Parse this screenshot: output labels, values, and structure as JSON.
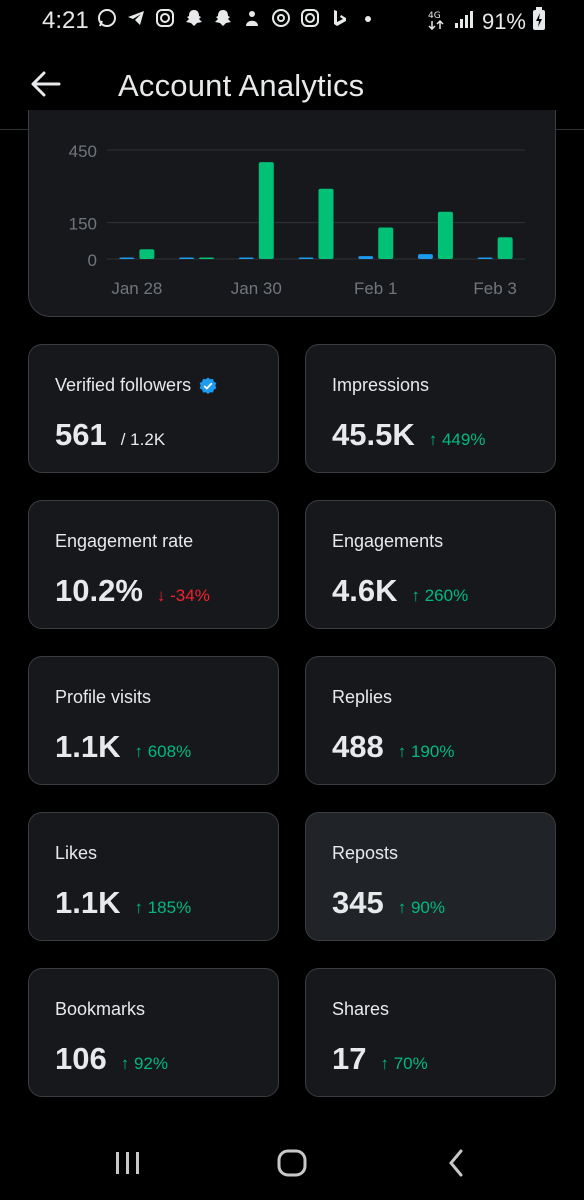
{
  "status_bar": {
    "time": "4:21",
    "left_icons": [
      "whatsapp-icon",
      "telegram-icon",
      "instagram-icon",
      "snapchat-icon",
      "snapchat-icon",
      "snapchat-ghost-icon",
      "threads-icon",
      "instagram-icon",
      "bing-icon",
      "dot-icon"
    ],
    "battery": "91%"
  },
  "header": {
    "title": "Account Analytics"
  },
  "chart_data": {
    "type": "bar",
    "categories": [
      "Jan 28",
      "Jan 29",
      "Jan 30",
      "Jan 31",
      "Feb 1",
      "Feb 2",
      "Feb 3"
    ],
    "x_tick_labels": [
      "Jan 28",
      "Jan 30",
      "Feb 1",
      "Feb 3"
    ],
    "y_tick_labels": [
      "450",
      "150",
      "0"
    ],
    "series": [
      {
        "values": [
          5,
          3,
          5,
          5,
          12,
          20,
          5
        ],
        "color": "#1d9bf0"
      },
      {
        "values": [
          40,
          3,
          400,
          290,
          130,
          195,
          90
        ],
        "color": "#00c176"
      }
    ],
    "ylim": [
      0,
      450
    ]
  },
  "metrics": [
    {
      "label": "Verified followers",
      "value": "561",
      "total": "/ 1.2K",
      "verified": true
    },
    {
      "label": "Impressions",
      "value": "45.5K",
      "change": "↑ 449%",
      "dir": "up"
    },
    {
      "label": "Engagement rate",
      "value": "10.2%",
      "change": "↓ -34%",
      "dir": "down"
    },
    {
      "label": "Engagements",
      "value": "4.6K",
      "change": "↑ 260%",
      "dir": "up"
    },
    {
      "label": "Profile visits",
      "value": "1.1K",
      "change": "↑ 608%",
      "dir": "up"
    },
    {
      "label": "Replies",
      "value": "488",
      "change": "↑ 190%",
      "dir": "up"
    },
    {
      "label": "Likes",
      "value": "1.1K",
      "change": "↑ 185%",
      "dir": "up"
    },
    {
      "label": "Reposts",
      "value": "345",
      "change": "↑ 90%",
      "dir": "up"
    },
    {
      "label": "Bookmarks",
      "value": "106",
      "change": "↑ 92%",
      "dir": "up"
    },
    {
      "label": "Shares",
      "value": "17",
      "change": "↑ 70%",
      "dir": "up"
    }
  ],
  "nav_bar": {
    "items": [
      "recents-icon",
      "home-icon",
      "back-icon"
    ]
  }
}
